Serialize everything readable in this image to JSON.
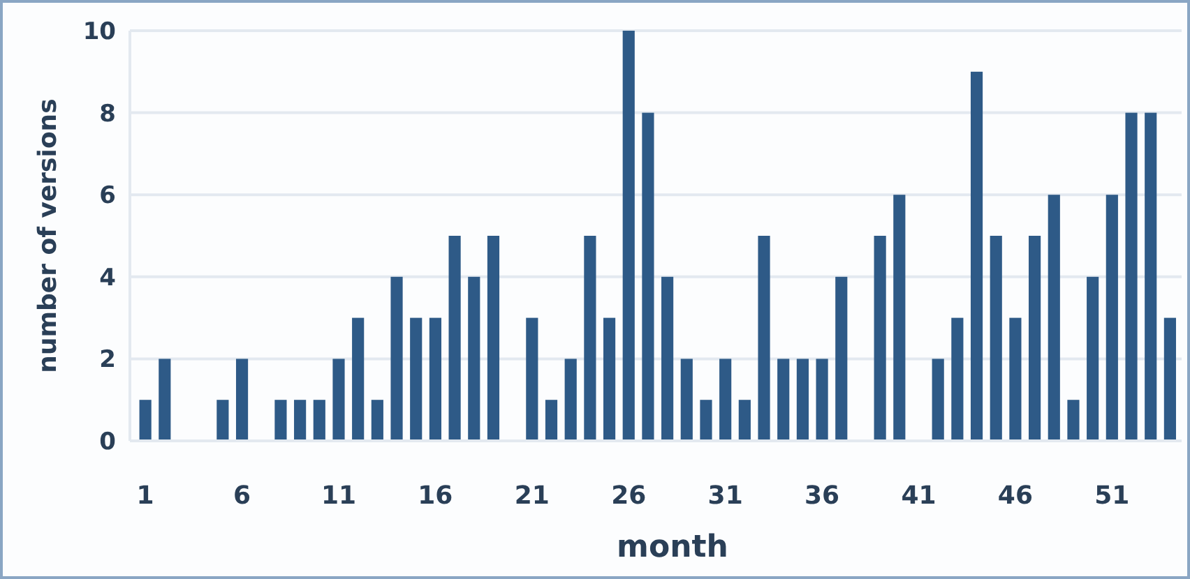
{
  "chart_data": {
    "type": "bar",
    "xlabel": "month",
    "ylabel": "number of versions",
    "x": [
      1,
      2,
      3,
      4,
      5,
      6,
      7,
      8,
      9,
      10,
      11,
      12,
      13,
      14,
      15,
      16,
      17,
      18,
      19,
      20,
      21,
      22,
      23,
      24,
      25,
      26,
      27,
      28,
      29,
      30,
      31,
      32,
      33,
      34,
      35,
      36,
      37,
      38,
      39,
      40,
      41,
      42,
      43,
      44,
      45,
      46,
      47,
      48,
      49,
      50,
      51,
      52,
      53,
      54
    ],
    "values": [
      1,
      2,
      0,
      0,
      1,
      2,
      0,
      1,
      1,
      1,
      2,
      3,
      1,
      4,
      3,
      3,
      5,
      4,
      5,
      0,
      3,
      1,
      2,
      5,
      3,
      10,
      8,
      4,
      2,
      1,
      2,
      1,
      5,
      2,
      2,
      2,
      4,
      0,
      5,
      6,
      0,
      2,
      3,
      9,
      5,
      3,
      5,
      6,
      1,
      4,
      6,
      8,
      8,
      3
    ],
    "color": "#2e5a87",
    "xlim": [
      0.2,
      54.6
    ],
    "xticks": [
      1,
      6,
      11,
      16,
      21,
      26,
      31,
      36,
      41,
      46,
      51
    ],
    "ylim": [
      0,
      10
    ],
    "yticks": [
      0,
      2,
      4,
      6,
      8,
      10
    ],
    "grid": "y"
  }
}
